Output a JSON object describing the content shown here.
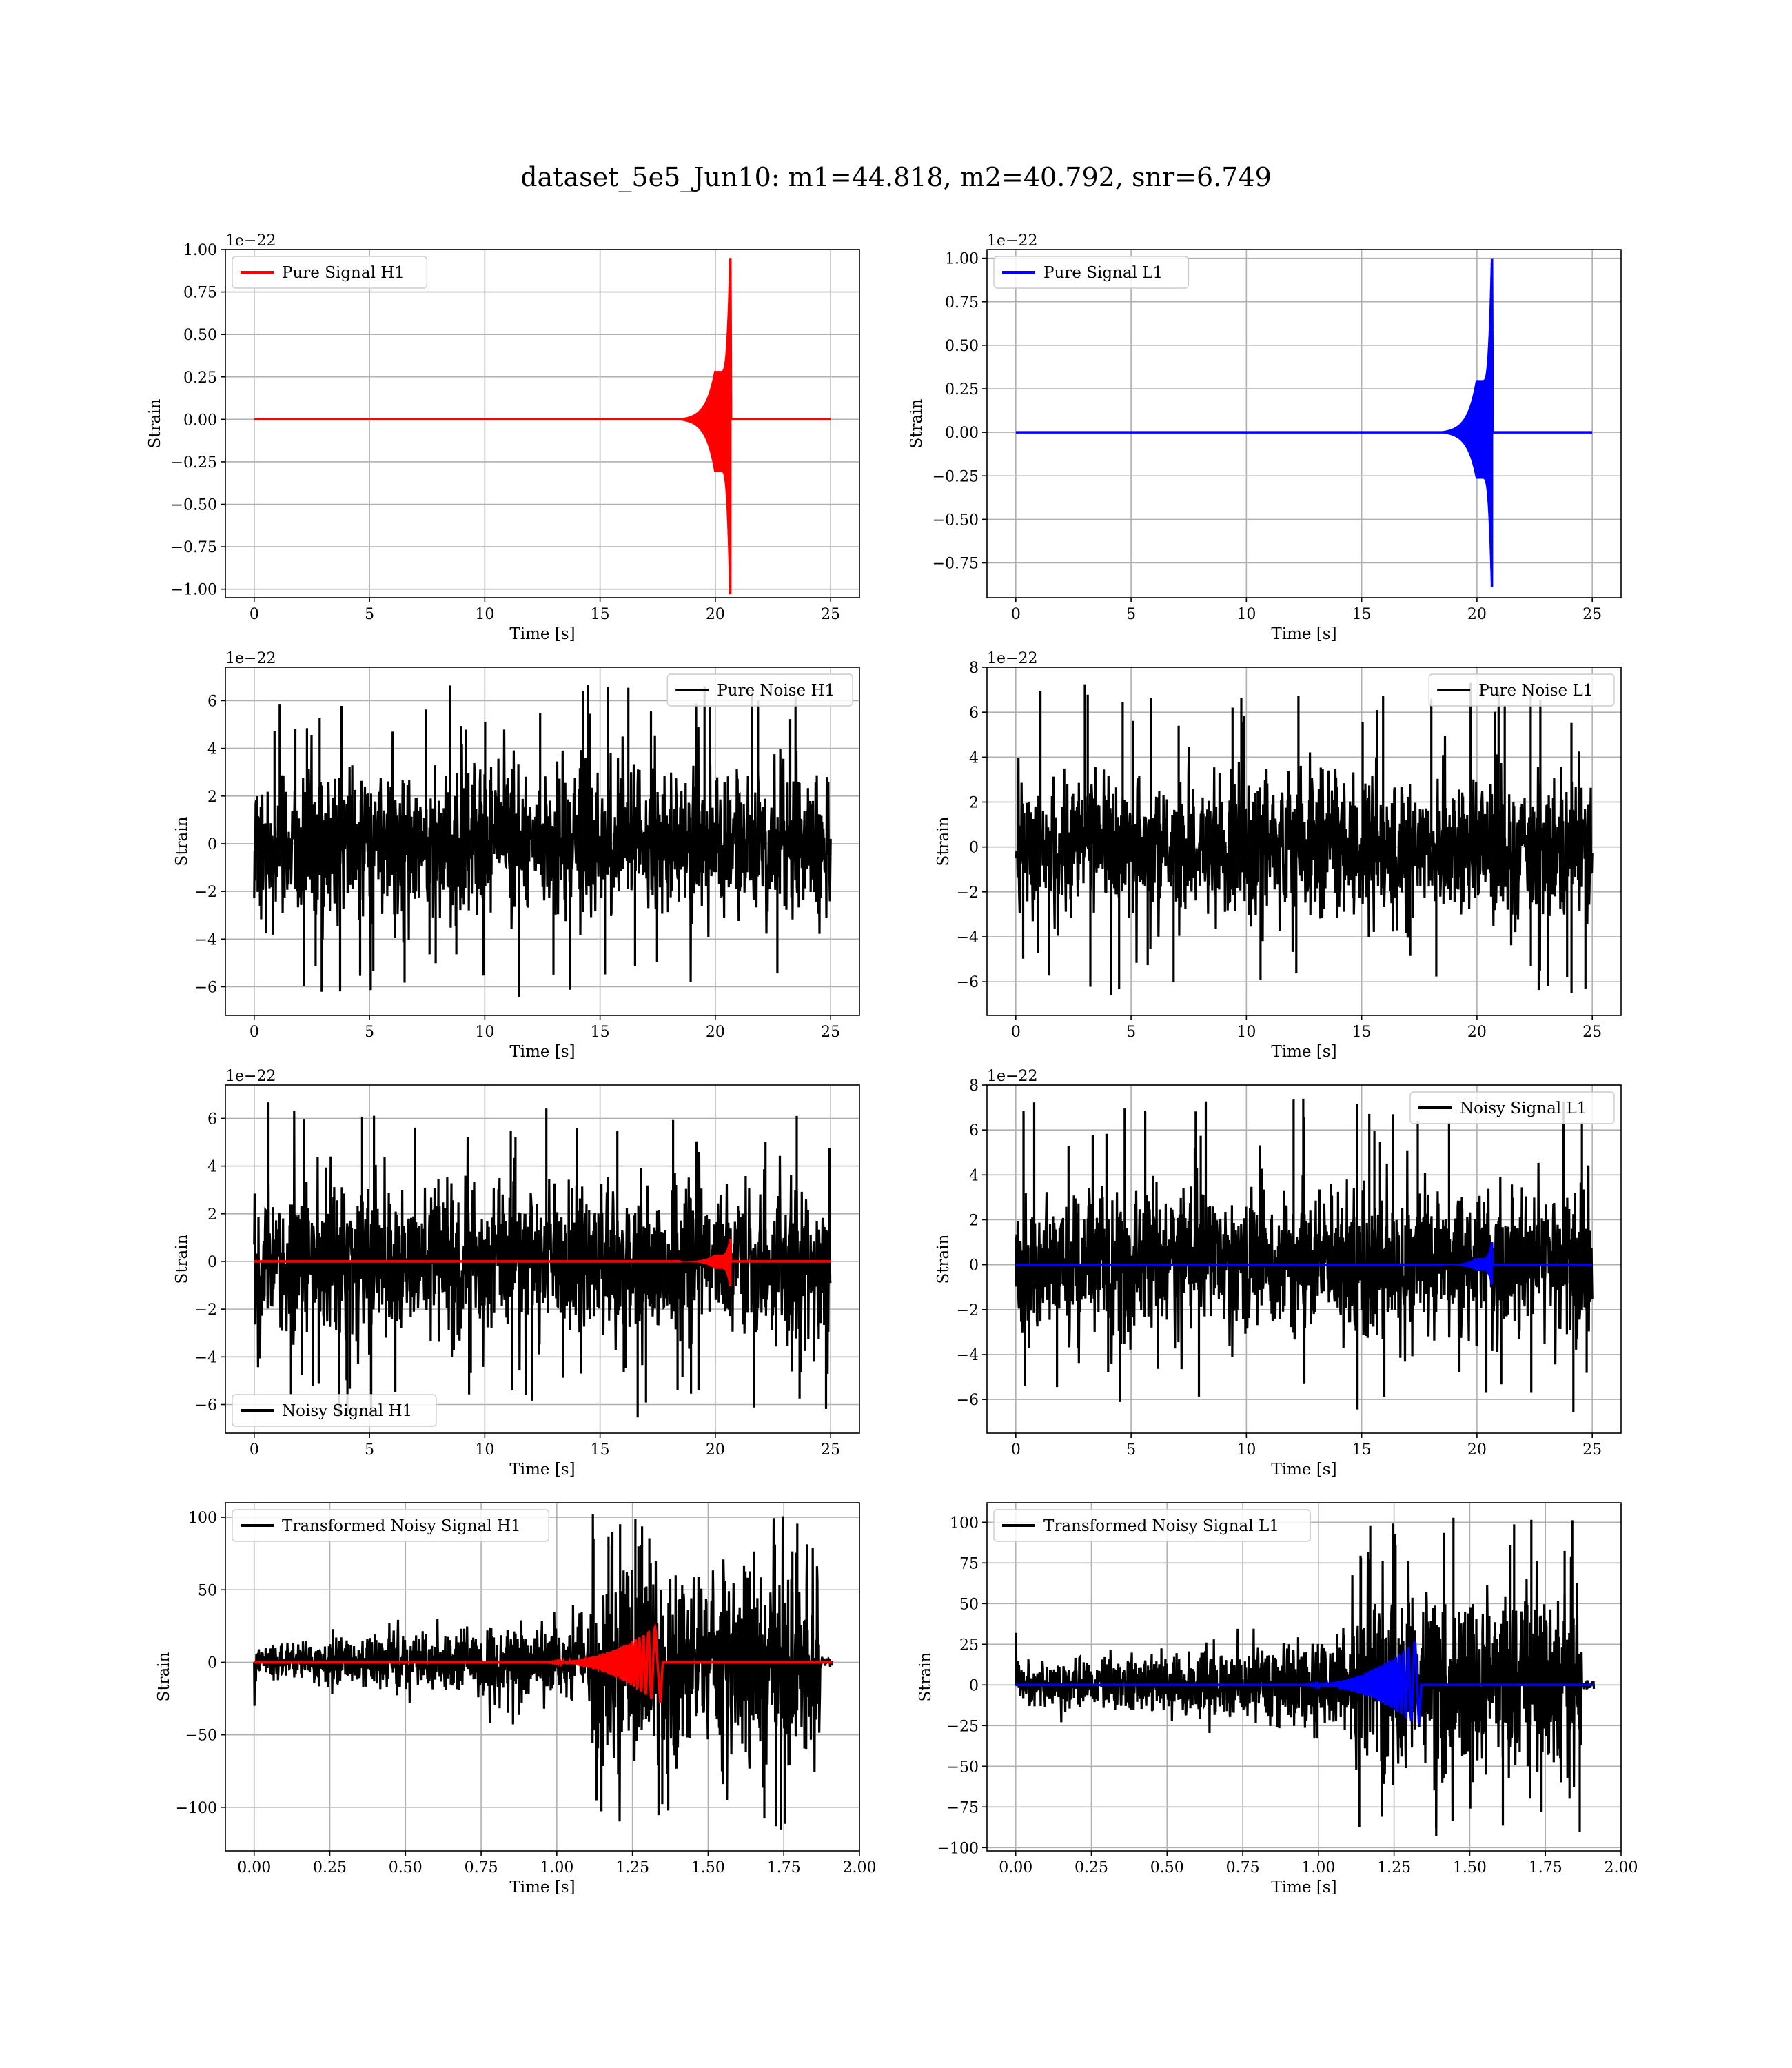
{
  "figure": {
    "title": "dataset_5e5_Jun10: m1=44.818, m2=40.792, snr=6.749"
  },
  "chart_data": [
    {
      "type": "line",
      "title": "",
      "xlabel": "Time [s]",
      "ylabel": "Strain",
      "offset_text": "1e−22",
      "xlim": [
        -1.25,
        26.25
      ],
      "ylim": [
        -1.05,
        1.0
      ],
      "xticks": [
        0,
        5,
        10,
        15,
        20,
        25
      ],
      "xtick_labels": [
        "0",
        "5",
        "10",
        "15",
        "20",
        "25"
      ],
      "yticks": [
        -1.0,
        -0.75,
        -0.5,
        -0.25,
        0.0,
        0.25,
        0.5,
        0.75,
        1.0
      ],
      "ytick_labels": [
        "−1.00",
        "−0.75",
        "−0.50",
        "−0.25",
        "0.00",
        "0.25",
        "0.50",
        "0.75",
        "1.00"
      ],
      "grid": true,
      "legend_position": "top-left",
      "series": [
        {
          "name": "Pure Signal H1",
          "color": "#ff0000",
          "kind": "chirp",
          "x_range": [
            0,
            25
          ],
          "merger_time": 20.65,
          "peak_pos": 0.95,
          "peak_neg": -1.03,
          "envelope_at_20": 0.3
        }
      ]
    },
    {
      "type": "line",
      "title": "",
      "xlabel": "Time [s]",
      "ylabel": "Strain",
      "offset_text": "1e−22",
      "xlim": [
        -1.25,
        26.25
      ],
      "ylim": [
        -0.95,
        1.05
      ],
      "xticks": [
        0,
        5,
        10,
        15,
        20,
        25
      ],
      "xtick_labels": [
        "0",
        "5",
        "10",
        "15",
        "20",
        "25"
      ],
      "yticks": [
        -0.75,
        -0.5,
        -0.25,
        0.0,
        0.25,
        0.5,
        0.75,
        1.0
      ],
      "ytick_labels": [
        "−0.75",
        "−0.50",
        "−0.25",
        "0.00",
        "0.25",
        "0.50",
        "0.75",
        "1.00"
      ],
      "grid": true,
      "legend_position": "top-left",
      "series": [
        {
          "name": "Pure Signal L1",
          "color": "#0000ff",
          "kind": "chirp",
          "x_range": [
            0,
            25
          ],
          "merger_time": 20.65,
          "peak_pos": 1.0,
          "peak_neg": -0.89,
          "envelope_at_20": 0.3
        }
      ]
    },
    {
      "type": "line",
      "title": "",
      "xlabel": "Time [s]",
      "ylabel": "Strain",
      "offset_text": "1e−22",
      "xlim": [
        -1.25,
        26.25
      ],
      "ylim": [
        -7.2,
        7.4
      ],
      "xticks": [
        0,
        5,
        10,
        15,
        20,
        25
      ],
      "xtick_labels": [
        "0",
        "5",
        "10",
        "15",
        "20",
        "25"
      ],
      "yticks": [
        -6,
        -4,
        -2,
        0,
        2,
        4,
        6
      ],
      "ytick_labels": [
        "−6",
        "−4",
        "−2",
        "0",
        "2",
        "4",
        "6"
      ],
      "grid": true,
      "legend_position": "top-right",
      "series": [
        {
          "name": "Pure Noise H1",
          "color": "#000000",
          "kind": "noise",
          "x_range": [
            0,
            25
          ],
          "y_max": 6.7,
          "y_min": -6.6
        }
      ]
    },
    {
      "type": "line",
      "title": "",
      "xlabel": "Time [s]",
      "ylabel": "Strain",
      "offset_text": "1e−22",
      "xlim": [
        -1.25,
        26.25
      ],
      "ylim": [
        -7.5,
        8.0
      ],
      "xticks": [
        0,
        5,
        10,
        15,
        20,
        25
      ],
      "xtick_labels": [
        "0",
        "5",
        "10",
        "15",
        "20",
        "25"
      ],
      "yticks": [
        -6,
        -4,
        -2,
        0,
        2,
        4,
        6,
        8
      ],
      "ytick_labels": [
        "−6",
        "−4",
        "−2",
        "0",
        "2",
        "4",
        "6",
        "8"
      ],
      "grid": true,
      "legend_position": "top-right",
      "series": [
        {
          "name": "Pure Noise L1",
          "color": "#000000",
          "kind": "noise",
          "x_range": [
            0,
            25
          ],
          "y_max": 7.4,
          "y_min": -6.6
        }
      ]
    },
    {
      "type": "line",
      "title": "",
      "xlabel": "Time [s]",
      "ylabel": "Strain",
      "offset_text": "1e−22",
      "xlim": [
        -1.25,
        26.25
      ],
      "ylim": [
        -7.2,
        7.4
      ],
      "xticks": [
        0,
        5,
        10,
        15,
        20,
        25
      ],
      "xtick_labels": [
        "0",
        "5",
        "10",
        "15",
        "20",
        "25"
      ],
      "yticks": [
        -6,
        -4,
        -2,
        0,
        2,
        4,
        6
      ],
      "ytick_labels": [
        "−6",
        "−4",
        "−2",
        "0",
        "2",
        "4",
        "6"
      ],
      "grid": true,
      "legend_position": "bottom-left",
      "series": [
        {
          "name": "Noisy Signal H1",
          "color": "#000000",
          "kind": "noise",
          "x_range": [
            0,
            25
          ],
          "y_max": 6.7,
          "y_min": -6.6
        },
        {
          "color": "#ff0000",
          "kind": "chirp",
          "x_range": [
            0,
            25
          ],
          "merger_time": 20.65,
          "peak_pos": 0.95,
          "peak_neg": -1.03,
          "envelope_at_20": 0.3
        }
      ]
    },
    {
      "type": "line",
      "title": "",
      "xlabel": "Time [s]",
      "ylabel": "Strain",
      "offset_text": "1e−22",
      "xlim": [
        -1.25,
        26.25
      ],
      "ylim": [
        -7.5,
        8.0
      ],
      "xticks": [
        0,
        5,
        10,
        15,
        20,
        25
      ],
      "xtick_labels": [
        "0",
        "5",
        "10",
        "15",
        "20",
        "25"
      ],
      "yticks": [
        -6,
        -4,
        -2,
        0,
        2,
        4,
        6,
        8
      ],
      "ytick_labels": [
        "−6",
        "−4",
        "−2",
        "0",
        "2",
        "4",
        "6",
        "8"
      ],
      "grid": true,
      "legend_position": "top-right",
      "series": [
        {
          "name": "Noisy Signal L1",
          "color": "#000000",
          "kind": "noise",
          "x_range": [
            0,
            25
          ],
          "y_max": 7.4,
          "y_min": -6.6
        },
        {
          "color": "#0000ff",
          "kind": "chirp",
          "x_range": [
            0,
            25
          ],
          "merger_time": 20.65,
          "peak_pos": 1.0,
          "peak_neg": -0.89,
          "envelope_at_20": 0.3
        }
      ]
    },
    {
      "type": "line",
      "title": "",
      "xlabel": "Time [s]",
      "ylabel": "Strain",
      "offset_text": "",
      "xlim": [
        -0.095,
        2.0
      ],
      "ylim": [
        -130,
        110
      ],
      "xticks": [
        0.0,
        0.25,
        0.5,
        0.75,
        1.0,
        1.25,
        1.5,
        1.75,
        2.0
      ],
      "xtick_labels": [
        "0.00",
        "0.25",
        "0.50",
        "0.75",
        "1.00",
        "1.25",
        "1.50",
        "1.75",
        "2.00"
      ],
      "yticks": [
        -100,
        -50,
        0,
        50,
        100
      ],
      "ytick_labels": [
        "−100",
        "−50",
        "0",
        "50",
        "100"
      ],
      "grid": true,
      "legend_position": "top-left",
      "series": [
        {
          "name": "Transformed Noisy Signal H1",
          "color": "#000000",
          "kind": "whitened",
          "x_range": [
            0,
            1.91
          ],
          "start_spike": -30,
          "early_amp": 6,
          "jump_time": 1.11,
          "late_amp": 60,
          "end_time": 1.87,
          "y_max": 102,
          "y_min": -120
        },
        {
          "color": "#ff0000",
          "kind": "whitened_chirp",
          "x_range": [
            0,
            1.91
          ],
          "merger_time": 1.33,
          "peak_pos": 25,
          "peak_neg": -28
        }
      ]
    },
    {
      "type": "line",
      "title": "",
      "xlabel": "Time [s]",
      "ylabel": "Strain",
      "offset_text": "",
      "xlim": [
        -0.095,
        2.0
      ],
      "ylim": [
        -102,
        112
      ],
      "xticks": [
        0.0,
        0.25,
        0.5,
        0.75,
        1.0,
        1.25,
        1.5,
        1.75,
        2.0
      ],
      "xtick_labels": [
        "0.00",
        "0.25",
        "0.50",
        "0.75",
        "1.00",
        "1.25",
        "1.50",
        "1.75",
        "2.00"
      ],
      "yticks": [
        -100,
        -75,
        -50,
        -25,
        0,
        25,
        50,
        75,
        100
      ],
      "ytick_labels": [
        "−100",
        "−75",
        "−50",
        "−25",
        "0",
        "25",
        "50",
        "75",
        "100"
      ],
      "grid": true,
      "legend_position": "top-left",
      "series": [
        {
          "name": "Transformed Noisy Signal L1",
          "color": "#000000",
          "kind": "whitened",
          "x_range": [
            0,
            1.91
          ],
          "start_spike": 32,
          "early_amp": 6,
          "jump_time": 1.11,
          "late_amp": 50,
          "end_time": 1.87,
          "y_max": 104,
          "y_min": -93
        },
        {
          "color": "#0000ff",
          "kind": "whitened_chirp",
          "x_range": [
            0,
            1.91
          ],
          "merger_time": 1.32,
          "peak_pos": 27,
          "peak_neg": -24
        }
      ]
    }
  ]
}
